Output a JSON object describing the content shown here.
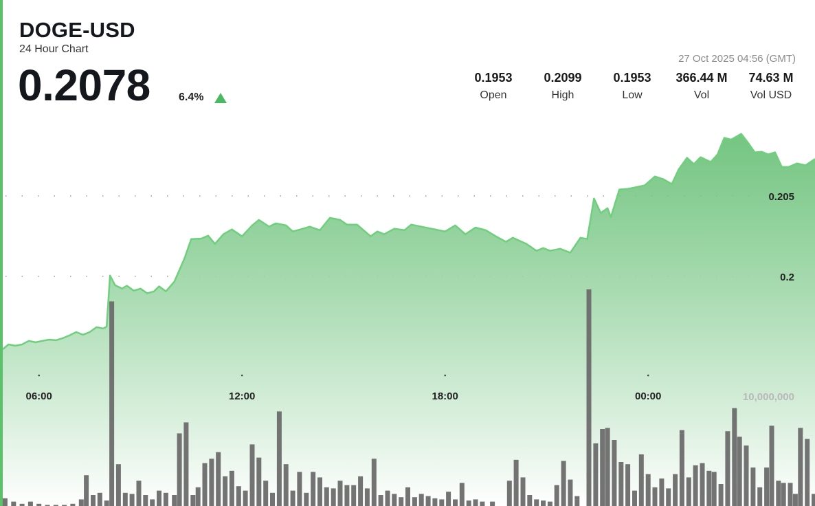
{
  "header": {
    "symbol": "DOGE-USD",
    "subtitle": "24 Hour Chart",
    "price": "0.2078",
    "change": "6.4%",
    "change_direction": "up",
    "timestamp": "27 Oct 2025 04:56 (GMT)"
  },
  "stats": [
    {
      "value": "0.1953",
      "label": "Open"
    },
    {
      "value": "0.2099",
      "label": "High"
    },
    {
      "value": "0.1953",
      "label": "Low"
    },
    {
      "value": "366.44 M",
      "label": "Vol"
    },
    {
      "value": "74.63 M",
      "label": "Vol USD"
    }
  ],
  "colors": {
    "accent": "#5cc16a",
    "line": "#6fcf7c",
    "fill_top": "#5cbb6c",
    "fill_bottom": "#ffffff",
    "volume_bar": "#6b6b6b",
    "up_arrow": "#4cb863"
  },
  "chart_data": {
    "type": "area",
    "price_axis": {
      "ticks": [
        0.2,
        0.205
      ],
      "tick_labels": [
        "0.2",
        "0.205"
      ],
      "range": [
        0.1953,
        0.2099
      ],
      "grid": "dotted"
    },
    "x_axis": {
      "tick_labels": [
        "06:00",
        "12:00",
        "18:00",
        "00:00"
      ],
      "tick_hours": [
        6,
        12,
        18,
        24
      ],
      "range_hours": [
        4.93,
        28.93
      ]
    },
    "volume_axis": {
      "label": "10,000,000",
      "label_value": 10000000
    },
    "price_series": [
      [
        4.93,
        0.19547
      ],
      [
        5.1,
        0.19577
      ],
      [
        5.3,
        0.19569
      ],
      [
        5.5,
        0.19577
      ],
      [
        5.7,
        0.19599
      ],
      [
        5.9,
        0.1959
      ],
      [
        6.1,
        0.19599
      ],
      [
        6.3,
        0.19607
      ],
      [
        6.5,
        0.19603
      ],
      [
        6.7,
        0.19616
      ],
      [
        6.9,
        0.19633
      ],
      [
        7.1,
        0.19654
      ],
      [
        7.3,
        0.19637
      ],
      [
        7.5,
        0.19654
      ],
      [
        7.7,
        0.19684
      ],
      [
        7.9,
        0.19676
      ],
      [
        8.0,
        0.19688
      ],
      [
        8.1,
        0.20005
      ],
      [
        8.25,
        0.19945
      ],
      [
        8.45,
        0.19924
      ],
      [
        8.6,
        0.19942
      ],
      [
        8.8,
        0.19911
      ],
      [
        9.0,
        0.19924
      ],
      [
        9.2,
        0.19895
      ],
      [
        9.4,
        0.19907
      ],
      [
        9.55,
        0.19938
      ],
      [
        9.75,
        0.19907
      ],
      [
        10.0,
        0.19967
      ],
      [
        10.3,
        0.20112
      ],
      [
        10.5,
        0.20232
      ],
      [
        10.8,
        0.20235
      ],
      [
        11.0,
        0.20253
      ],
      [
        11.2,
        0.20202
      ],
      [
        11.45,
        0.20262
      ],
      [
        11.7,
        0.20292
      ],
      [
        12.0,
        0.20249
      ],
      [
        12.3,
        0.20317
      ],
      [
        12.5,
        0.20351
      ],
      [
        12.8,
        0.20309
      ],
      [
        13.0,
        0.2033
      ],
      [
        13.3,
        0.20317
      ],
      [
        13.5,
        0.20279
      ],
      [
        13.8,
        0.20296
      ],
      [
        14.0,
        0.20309
      ],
      [
        14.3,
        0.20287
      ],
      [
        14.6,
        0.20364
      ],
      [
        14.9,
        0.20351
      ],
      [
        15.1,
        0.20322
      ],
      [
        15.4,
        0.20322
      ],
      [
        15.8,
        0.20249
      ],
      [
        16.0,
        0.20279
      ],
      [
        16.2,
        0.20262
      ],
      [
        16.5,
        0.20296
      ],
      [
        16.8,
        0.20287
      ],
      [
        17.0,
        0.20322
      ],
      [
        17.3,
        0.20309
      ],
      [
        17.6,
        0.20296
      ],
      [
        18.0,
        0.20279
      ],
      [
        18.3,
        0.20317
      ],
      [
        18.6,
        0.20262
      ],
      [
        18.9,
        0.20304
      ],
      [
        19.2,
        0.20287
      ],
      [
        19.5,
        0.20249
      ],
      [
        19.8,
        0.20215
      ],
      [
        20.0,
        0.2024
      ],
      [
        20.4,
        0.20202
      ],
      [
        20.7,
        0.20159
      ],
      [
        20.9,
        0.20176
      ],
      [
        21.1,
        0.20159
      ],
      [
        21.4,
        0.20172
      ],
      [
        21.7,
        0.20147
      ],
      [
        22.0,
        0.2024
      ],
      [
        22.2,
        0.20232
      ],
      [
        22.4,
        0.20484
      ],
      [
        22.6,
        0.20394
      ],
      [
        22.8,
        0.20424
      ],
      [
        22.9,
        0.20369
      ],
      [
        23.15,
        0.2054
      ],
      [
        23.4,
        0.20544
      ],
      [
        23.7,
        0.20557
      ],
      [
        23.9,
        0.20566
      ],
      [
        24.2,
        0.20621
      ],
      [
        24.45,
        0.20604
      ],
      [
        24.7,
        0.20574
      ],
      [
        24.9,
        0.20664
      ],
      [
        25.15,
        0.20737
      ],
      [
        25.35,
        0.20698
      ],
      [
        25.55,
        0.20741
      ],
      [
        25.85,
        0.20711
      ],
      [
        26.05,
        0.20758
      ],
      [
        26.25,
        0.20861
      ],
      [
        26.45,
        0.2085
      ],
      [
        26.75,
        0.20886
      ],
      [
        26.95,
        0.20831
      ],
      [
        27.15,
        0.20771
      ],
      [
        27.35,
        0.20775
      ],
      [
        27.55,
        0.20758
      ],
      [
        27.75,
        0.20771
      ],
      [
        27.95,
        0.2068
      ],
      [
        28.15,
        0.2068
      ],
      [
        28.4,
        0.20702
      ],
      [
        28.65,
        0.2069
      ],
      [
        28.93,
        0.2073
      ]
    ],
    "volume_series": [
      [
        5.0,
        0.35
      ],
      [
        5.25,
        0.2
      ],
      [
        5.5,
        0.1
      ],
      [
        5.75,
        0.2
      ],
      [
        6.0,
        0.1
      ],
      [
        6.25,
        0.05
      ],
      [
        6.5,
        0.05
      ],
      [
        6.75,
        0.05
      ],
      [
        7.0,
        0.1
      ],
      [
        7.25,
        0.3
      ],
      [
        7.4,
        1.4
      ],
      [
        7.6,
        0.5
      ],
      [
        7.8,
        0.6
      ],
      [
        8.0,
        0.25
      ],
      [
        8.15,
        9.3
      ],
      [
        8.35,
        1.9
      ],
      [
        8.55,
        0.6
      ],
      [
        8.75,
        0.55
      ],
      [
        8.95,
        1.15
      ],
      [
        9.15,
        0.5
      ],
      [
        9.35,
        0.3
      ],
      [
        9.55,
        0.7
      ],
      [
        9.75,
        0.6
      ],
      [
        10.0,
        0.5
      ],
      [
        10.15,
        3.3
      ],
      [
        10.35,
        3.8
      ],
      [
        10.55,
        0.5
      ],
      [
        10.7,
        0.85
      ],
      [
        10.9,
        1.95
      ],
      [
        11.1,
        2.15
      ],
      [
        11.3,
        2.45
      ],
      [
        11.5,
        1.35
      ],
      [
        11.7,
        1.6
      ],
      [
        11.9,
        0.9
      ],
      [
        12.1,
        0.7
      ],
      [
        12.3,
        2.8
      ],
      [
        12.5,
        2.2
      ],
      [
        12.7,
        1.15
      ],
      [
        12.9,
        0.6
      ],
      [
        13.1,
        4.3
      ],
      [
        13.3,
        1.9
      ],
      [
        13.5,
        0.7
      ],
      [
        13.7,
        1.55
      ],
      [
        13.9,
        0.6
      ],
      [
        14.1,
        1.55
      ],
      [
        14.3,
        1.3
      ],
      [
        14.5,
        0.85
      ],
      [
        14.7,
        0.8
      ],
      [
        14.9,
        1.15
      ],
      [
        15.1,
        0.95
      ],
      [
        15.3,
        0.95
      ],
      [
        15.5,
        1.35
      ],
      [
        15.7,
        0.8
      ],
      [
        15.9,
        2.15
      ],
      [
        16.1,
        0.5
      ],
      [
        16.3,
        0.7
      ],
      [
        16.5,
        0.55
      ],
      [
        16.7,
        0.4
      ],
      [
        16.9,
        0.85
      ],
      [
        17.1,
        0.4
      ],
      [
        17.3,
        0.55
      ],
      [
        17.5,
        0.45
      ],
      [
        17.7,
        0.35
      ],
      [
        17.9,
        0.3
      ],
      [
        18.1,
        0.65
      ],
      [
        18.3,
        0.3
      ],
      [
        18.5,
        1.05
      ],
      [
        18.7,
        0.25
      ],
      [
        18.9,
        0.3
      ],
      [
        19.1,
        0.2
      ],
      [
        19.4,
        0.2
      ],
      [
        19.9,
        1.15
      ],
      [
        20.1,
        2.1
      ],
      [
        20.3,
        1.3
      ],
      [
        20.5,
        0.5
      ],
      [
        20.7,
        0.3
      ],
      [
        20.9,
        0.25
      ],
      [
        21.1,
        0.2
      ],
      [
        21.3,
        0.95
      ],
      [
        21.5,
        2.05
      ],
      [
        21.7,
        1.2
      ],
      [
        21.9,
        0.45
      ],
      [
        22.25,
        9.85
      ],
      [
        22.45,
        2.85
      ],
      [
        22.65,
        3.5
      ],
      [
        22.8,
        3.55
      ],
      [
        23.0,
        3.0
      ],
      [
        23.2,
        2.0
      ],
      [
        23.4,
        1.9
      ],
      [
        23.6,
        0.7
      ],
      [
        23.8,
        2.35
      ],
      [
        24.0,
        1.45
      ],
      [
        24.2,
        0.85
      ],
      [
        24.4,
        1.25
      ],
      [
        24.6,
        0.8
      ],
      [
        24.8,
        1.45
      ],
      [
        25.0,
        3.45
      ],
      [
        25.2,
        1.3
      ],
      [
        25.4,
        1.85
      ],
      [
        25.6,
        1.95
      ],
      [
        25.8,
        1.6
      ],
      [
        25.95,
        1.55
      ],
      [
        26.15,
        1.0
      ],
      [
        26.35,
        3.4
      ],
      [
        26.55,
        4.45
      ],
      [
        26.7,
        3.15
      ],
      [
        26.9,
        2.75
      ],
      [
        27.1,
        1.75
      ],
      [
        27.3,
        0.85
      ],
      [
        27.5,
        1.75
      ],
      [
        27.65,
        3.65
      ],
      [
        27.85,
        1.15
      ],
      [
        28.0,
        1.05
      ],
      [
        28.2,
        1.05
      ],
      [
        28.35,
        0.55
      ],
      [
        28.5,
        3.55
      ],
      [
        28.7,
        3.05
      ],
      [
        28.9,
        0.55
      ],
      [
        29.0,
        0.5
      ],
      [
        29.15,
        2.2
      ],
      [
        29.3,
        0.25
      ],
      [
        29.45,
        0.55
      ]
    ],
    "volume_unit": "10,000,000"
  }
}
